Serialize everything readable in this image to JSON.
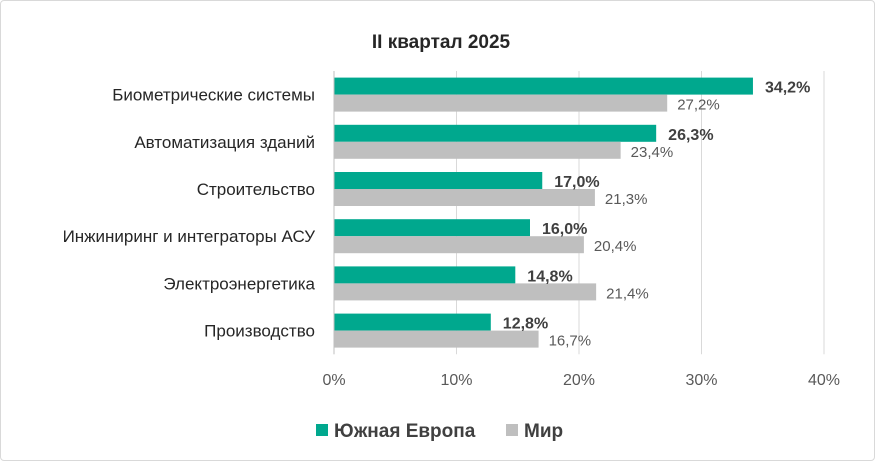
{
  "chart_data": {
    "type": "bar",
    "orientation": "horizontal",
    "title": "II квартал 2025",
    "categories": [
      "Биометрические системы",
      "Автоматизация зданий",
      "Строительство",
      "Инжиниринг и интеграторы АСУ",
      "Электроэнергетика",
      "Производство"
    ],
    "series": [
      {
        "name": "Южная Европа",
        "values": [
          34.2,
          26.3,
          17.0,
          16.0,
          14.8,
          12.8
        ],
        "labels": [
          "34,2%",
          "26,3%",
          "17,0%",
          "16,0%",
          "14,8%",
          "12,8%"
        ],
        "color": "#00A88E"
      },
      {
        "name": "Мир",
        "values": [
          27.2,
          23.4,
          21.3,
          20.4,
          21.4,
          16.7
        ],
        "labels": [
          "27,2%",
          "23,4%",
          "21,3%",
          "20,4%",
          "21,4%",
          "16,7%"
        ],
        "color": "#BFBFBF"
      }
    ],
    "xlim": [
      0,
      40
    ],
    "xticks": [
      0,
      10,
      20,
      30,
      40
    ],
    "xtick_labels": [
      "0%",
      "10%",
      "20%",
      "30%",
      "40%"
    ],
    "grid": "vertical",
    "legend_position": "bottom"
  }
}
